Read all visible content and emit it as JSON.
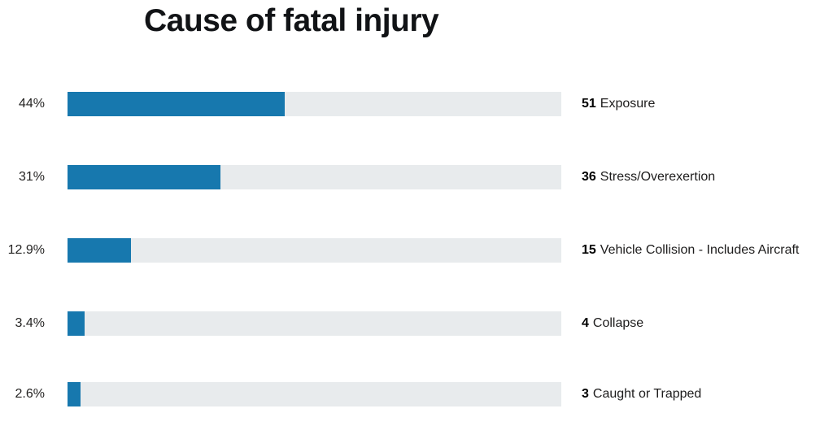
{
  "chart_data": {
    "type": "bar",
    "orientation": "horizontal",
    "title": "Cause of fatal injury",
    "categories": [
      "Exposure",
      "Stress/Overexertion",
      "Vehicle Collision - Includes Aircraft",
      "Collapse",
      "Caught or Trapped"
    ],
    "values": [
      51,
      36,
      15,
      4,
      3
    ],
    "percents": [
      44,
      31,
      12.9,
      3.4,
      2.6
    ],
    "percent_labels": [
      "44%",
      "31%",
      "12.9%",
      "3.4%",
      "2.6%"
    ],
    "xlabel": "",
    "ylabel": "",
    "xlim": [
      0,
      100
    ],
    "grid": false,
    "legend": false
  },
  "colors": {
    "bar_fill": "#1778ae",
    "bar_track": "#e8ebed",
    "title_text": "#111316",
    "label_text": "#252423"
  }
}
